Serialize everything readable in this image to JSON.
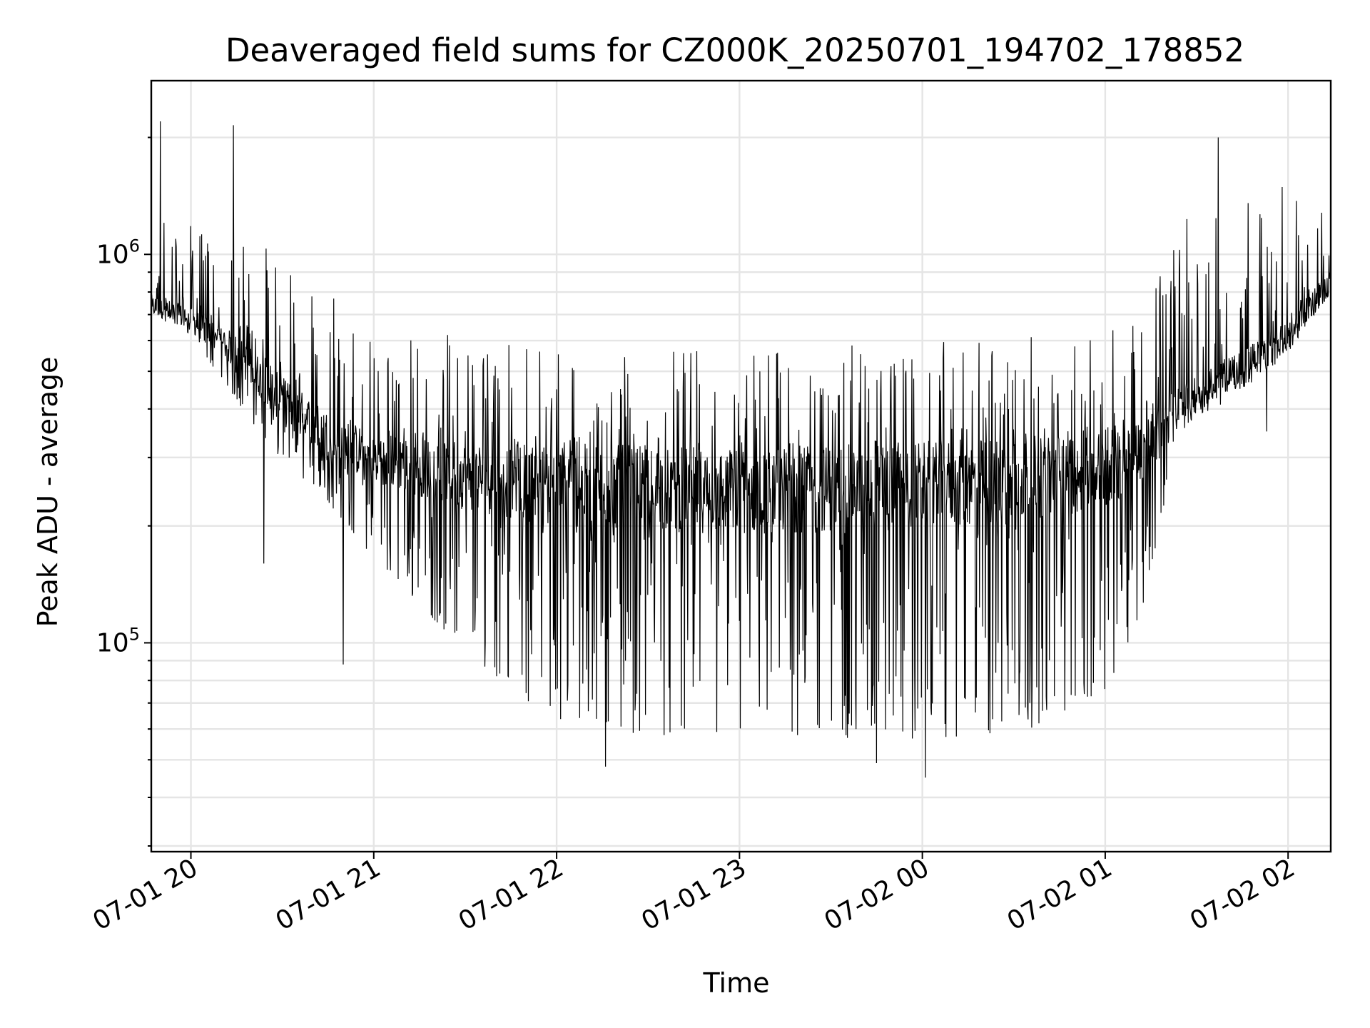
{
  "chart_data": {
    "type": "line",
    "title": "Deaveraged field sums for CZ000K_20250701_194702_178852",
    "xlabel": "Time",
    "ylabel": "Peak ADU - average",
    "xscale": "time",
    "yscale": "log",
    "xlim": [
      "2025-07-01 19:47",
      "2025-07-02 02:14"
    ],
    "ylim": [
      29000,
      2800000
    ],
    "grid": true,
    "legend": "none",
    "line_color": "#000000",
    "x_ticks": [
      "07-01 20",
      "07-01 21",
      "07-01 22",
      "07-01 23",
      "07-02 00",
      "07-02 01",
      "07-02 02"
    ],
    "y_ticks": [
      {
        "base": "10",
        "exp": "5",
        "value": 100000
      },
      {
        "base": "10",
        "exp": "6",
        "value": 1000000
      }
    ],
    "series": [
      {
        "x": [
          "2025-07-01 19:47",
          "2025-07-01 20:00",
          "2025-07-01 20:15",
          "2025-07-01 20:30",
          "2025-07-01 20:45",
          "2025-07-01 21:00",
          "2025-07-01 21:30",
          "2025-07-01 22:00",
          "2025-07-01 22:30",
          "2025-07-01 23:00",
          "2025-07-01 23:30",
          "2025-07-02 00:00",
          "2025-07-02 00:30",
          "2025-07-02 01:00",
          "2025-07-02 01:15",
          "2025-07-02 01:24",
          "2025-07-02 01:30",
          "2025-07-02 01:45",
          "2025-07-02 02:00",
          "2025-07-02 02:14"
        ],
        "baseline": [
          740000,
          680000,
          560000,
          420000,
          340000,
          300000,
          270000,
          255000,
          250000,
          245000,
          250000,
          255000,
          262000,
          280000,
          330000,
          400000,
          430000,
          500000,
          620000,
          850000
        ],
        "upper_envelope": [
          1300000,
          1200000,
          1100000,
          1050000,
          950000,
          640000,
          620000,
          600000,
          590000,
          580000,
          590000,
          600000,
          610000,
          640000,
          750000,
          1350000,
          1400000,
          1450000,
          1500000,
          1500000
        ],
        "lower_envelope": [
          720000,
          620000,
          420000,
          290000,
          230000,
          165000,
          95000,
          62000,
          58000,
          57000,
          57000,
          56000,
          58000,
          72000,
          140000,
          380000,
          400000,
          460000,
          560000,
          800000
        ]
      }
    ],
    "notable_points": [
      {
        "x": "2025-07-01 19:50",
        "y": 2200000
      },
      {
        "x": "2025-07-01 20:14",
        "y": 2150000
      },
      {
        "x": "2025-07-01 20:24",
        "y": 160000
      },
      {
        "x": "2025-07-01 20:50",
        "y": 88000
      },
      {
        "x": "2025-07-01 22:16",
        "y": 48000
      },
      {
        "x": "2025-07-01 23:45",
        "y": 49000
      },
      {
        "x": "2025-07-02 00:01",
        "y": 45000
      },
      {
        "x": "2025-07-02 01:37",
        "y": 2000000
      },
      {
        "x": "2025-07-02 01:53",
        "y": 350000
      }
    ]
  }
}
